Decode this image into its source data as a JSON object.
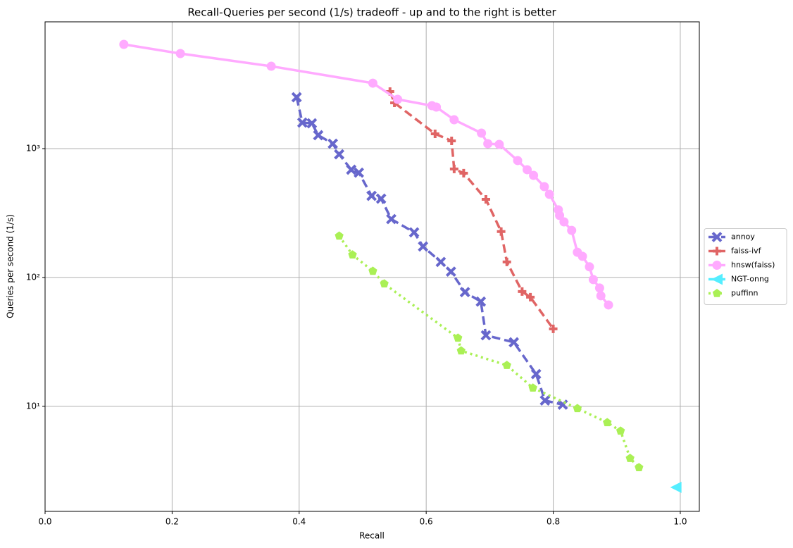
{
  "chart_data": {
    "type": "scatter",
    "title": "Recall-Queries per second (1/s) tradeoff - up and to the right is better",
    "xlabel": "Recall",
    "ylabel": "Queries per second (1/s)",
    "xlim": [
      0,
      1.03
    ],
    "ylim": [
      1.53,
      9640
    ],
    "yscale": "log",
    "grid": true,
    "legend": "right",
    "xticks": [
      {
        "value": 0,
        "label": "0.0"
      },
      0.2,
      0.4,
      0.6,
      0.8,
      {
        "value": 1,
        "label": "1.0"
      }
    ],
    "yticks": [
      {
        "value": 10,
        "label": "10¹"
      },
      {
        "value": 100,
        "label": "10²"
      },
      {
        "value": 1000,
        "label": "10³"
      }
    ],
    "series": [
      {
        "name": "annoy",
        "color": "#6767cc",
        "marker": "x",
        "linestyle": "dashed",
        "x": [
          0.396,
          0.405,
          0.42,
          0.43,
          0.453,
          0.463,
          0.482,
          0.494,
          0.514,
          0.529,
          0.545,
          0.581,
          0.595,
          0.623,
          0.639,
          0.661,
          0.686,
          0.694,
          0.738,
          0.773,
          0.787,
          0.815
        ],
        "values": [
          2506,
          1592,
          1573,
          1271,
          1092,
          904,
          686,
          651,
          430,
          409,
          284,
          224,
          174,
          132,
          111,
          77,
          65,
          35.6,
          31.4,
          17.8,
          11.1,
          10.3
        ]
      },
      {
        "name": "faiss-ivf",
        "color": "#e06565",
        "marker": "P",
        "linestyle": "dashed",
        "x": [
          0.543,
          0.55,
          0.614,
          0.64,
          0.644,
          0.659,
          0.694,
          0.718,
          0.727,
          0.751,
          0.764,
          0.8
        ],
        "values": [
          2773,
          2266,
          1303,
          1149,
          695,
          645,
          404,
          227,
          132,
          77.8,
          70.3,
          39.9
        ]
      },
      {
        "name": "hnsw(faiss)",
        "color": "#ffaaff",
        "marker": "o",
        "linestyle": "solid",
        "x": [
          0.124,
          0.213,
          0.356,
          0.516,
          0.555,
          0.609,
          0.616,
          0.644,
          0.687,
          0.697,
          0.715,
          0.744,
          0.759,
          0.769,
          0.786,
          0.794,
          0.808,
          0.81,
          0.817,
          0.829,
          0.838,
          0.846,
          0.857,
          0.863,
          0.873,
          0.875,
          0.887
        ],
        "values": [
          6442,
          5469,
          4359,
          3222,
          2413,
          2155,
          2101,
          1675,
          1319,
          1092,
          1079,
          808,
          686,
          620,
          507,
          442,
          335,
          303,
          270,
          232,
          157,
          146,
          121,
          96.4,
          82.8,
          72.1,
          61.2
        ]
      },
      {
        "name": "NGT-onng",
        "color": "#55eeff",
        "marker": "<",
        "linestyle": "solid",
        "x": [
          0.993
        ],
        "values": [
          2.35
        ]
      },
      {
        "name": "puffinn",
        "color": "#aaf055",
        "marker": "p",
        "linestyle": "dotted",
        "x": [
          0.463,
          0.484,
          0.516,
          0.534,
          0.65,
          0.655,
          0.727,
          0.768,
          0.838,
          0.885,
          0.906,
          0.921,
          0.935
        ],
        "values": [
          210,
          150,
          112,
          89.3,
          33.9,
          27.0,
          20.8,
          13.9,
          9.63,
          7.49,
          6.44,
          3.95,
          3.35
        ]
      }
    ]
  }
}
